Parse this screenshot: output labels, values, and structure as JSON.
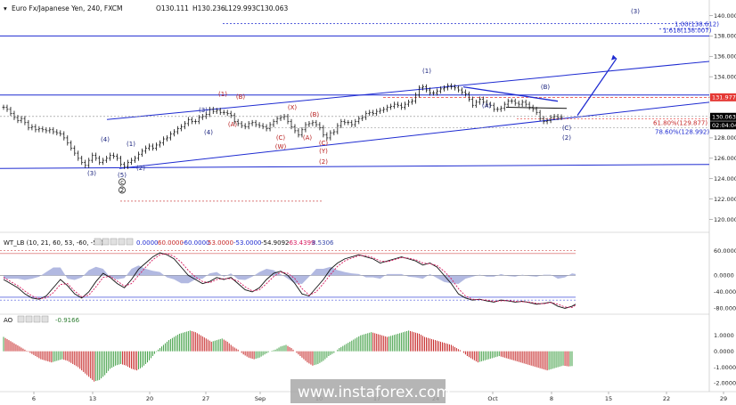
{
  "header": {
    "symbol": "Euro Fx/Japanese Yen, 240, FXCM",
    "open": "O130.111",
    "high": "H130.236",
    "low": "L129.993",
    "close": "C130.063"
  },
  "watermark": "www.instaforex.com",
  "price_axis": {
    "ticks": [
      "140.000",
      "138.000",
      "136.000",
      "134.000",
      "132.000",
      "130.000",
      "128.000",
      "126.000",
      "124.000",
      "122.000",
      "120.000"
    ],
    "current_price": "130.063",
    "countdown": "02:04:04",
    "resistance_label": "131.977"
  },
  "fib_labels": {
    "f1": "61.80%(129.877)",
    "f2": "78.60%(128.992)",
    "f3": "1.00(138.612)",
    "f4": "1.618(138.007)"
  },
  "wave_labels": [
    {
      "t": "(3)",
      "c": "#1a237e"
    },
    {
      "t": "(4)",
      "c": "#1a237e"
    },
    {
      "t": "(5)",
      "c": "#1a237e"
    },
    {
      "t": "(1)",
      "c": "#1a237e"
    },
    {
      "t": "(2)",
      "c": "#1a237e"
    },
    {
      "t": "(3)",
      "c": "#1a237e"
    },
    {
      "t": "(4)",
      "c": "#1a237e"
    },
    {
      "t": "(1)",
      "c": "#b71c1c"
    },
    {
      "t": "(B)",
      "c": "#b71c1c"
    },
    {
      "t": "(A)",
      "c": "#b71c1c"
    },
    {
      "t": "(C)",
      "c": "#b71c1c"
    },
    {
      "t": "(W)",
      "c": "#b71c1c"
    },
    {
      "t": "(X)",
      "c": "#b71c1c"
    },
    {
      "t": "(A)",
      "c": "#b71c1c"
    },
    {
      "t": "(B)",
      "c": "#b71c1c"
    },
    {
      "t": "(C)",
      "c": "#b71c1c"
    },
    {
      "t": "(Y)",
      "c": "#b71c1c"
    },
    {
      "t": "(2)",
      "c": "#b71c1c"
    },
    {
      "t": "(1)",
      "c": "#1a237e"
    },
    {
      "t": "(A)",
      "c": "#1a237e"
    },
    {
      "t": "(B)",
      "c": "#1a237e"
    },
    {
      "t": "(C)",
      "c": "#1a237e"
    },
    {
      "t": "(2)",
      "c": "#1a237e"
    },
    {
      "t": "(3)",
      "c": "#1a237e"
    },
    {
      "t": "c",
      "c": "#111111"
    },
    {
      "t": "2",
      "c": "#111111"
    }
  ],
  "wt_panel": {
    "title": "WT_LB (10, 21, 60, 53, -60, -53)",
    "values": [
      "0.0000",
      "60.0000",
      "-60.0000",
      "53.0000",
      "-53.0000",
      "-54.9092",
      "-63.4399",
      "8.5306"
    ],
    "ticks": [
      "60.0000",
      "0.0000",
      "-40.0000",
      "-80.0000"
    ]
  },
  "ao_panel": {
    "title": "AO",
    "value": "-0.9166",
    "ticks": [
      "1.0000",
      "0.0000",
      "-1.0000",
      "-2.0000"
    ]
  },
  "time_axis": [
    "6",
    "13",
    "20",
    "27",
    "Sep",
    "10",
    "17",
    "24",
    "Oct",
    "8",
    "15",
    "22",
    "29"
  ],
  "colors": {
    "price": "#111111",
    "trendline": "#1e2bd1",
    "red_label": "#b71c1c",
    "blue_label": "#1a237e",
    "wt_line": "#111111",
    "wt_signal": "#d81b60",
    "wt_hist": "#9fa8da",
    "ao_up": "#43a047",
    "ao_down": "#c62828",
    "resistance": "#e53935"
  },
  "chart_data": {
    "type": "line",
    "main": {
      "x": [
        0,
        4,
        8,
        12,
        16,
        20,
        24,
        28,
        32,
        36,
        40,
        44,
        48,
        52,
        56,
        60,
        64,
        68,
        72,
        76,
        80,
        84,
        88,
        92,
        96,
        100,
        104,
        108,
        112,
        116,
        120,
        124,
        128,
        132,
        136,
        140,
        144,
        148,
        152,
        156,
        160,
        164,
        168,
        172,
        176,
        180,
        184,
        188,
        192,
        196,
        200,
        204,
        208,
        212,
        216,
        220,
        224,
        228,
        232,
        236,
        240,
        244,
        248,
        252,
        256,
        260,
        264,
        268,
        272,
        276,
        280,
        284,
        288,
        292,
        296,
        300,
        304,
        308,
        312,
        316,
        320,
        324,
        328,
        332,
        336,
        340,
        344,
        348,
        352,
        356,
        360,
        364,
        368,
        372,
        376,
        380,
        384,
        388,
        392,
        396,
        400,
        404,
        408,
        412,
        416,
        420,
        424,
        428,
        432,
        436,
        440,
        444,
        448,
        452,
        456,
        460,
        464,
        468,
        472,
        476,
        480,
        484,
        488,
        492,
        496,
        500,
        504,
        508,
        512,
        516,
        520,
        524,
        528,
        532,
        536,
        540,
        544,
        548,
        552,
        556,
        560,
        564,
        568,
        572,
        576,
        580,
        584,
        588,
        592,
        596,
        600,
        604,
        608,
        612,
        616,
        620,
        624,
        628,
        632,
        636,
        640,
        644
      ],
      "price": [
        131.0,
        130.8,
        130.4,
        130.0,
        129.7,
        129.9,
        129.5,
        129.0,
        129.1,
        128.8,
        128.9,
        128.8,
        128.7,
        128.8,
        128.6,
        128.5,
        128.4,
        128.0,
        127.5,
        127.0,
        126.5,
        126.0,
        125.6,
        125.3,
        125.8,
        126.3,
        126.0,
        125.6,
        125.8,
        126.0,
        126.3,
        126.2,
        126.0,
        125.4,
        125.2,
        125.6,
        125.8,
        126.0,
        126.4,
        126.7,
        127.0,
        127.2,
        127.0,
        127.3,
        127.5,
        127.9,
        128.0,
        128.4,
        128.6,
        128.9,
        129.1,
        129.4,
        129.8,
        129.6,
        129.6,
        130.0,
        130.1,
        130.3,
        130.8,
        130.6,
        130.7,
        130.5,
        130.5,
        130.4,
        130.2,
        129.6,
        129.4,
        129.2,
        129.1,
        129.4,
        129.5,
        129.3,
        129.2,
        129.1,
        128.9,
        129.3,
        129.6,
        129.9,
        130.0,
        130.1,
        129.6,
        129.1,
        128.7,
        128.3,
        128.8,
        129.3,
        129.4,
        129.5,
        129.3,
        129.0,
        128.3,
        128.0,
        128.5,
        128.6,
        129.2,
        129.6,
        129.5,
        129.5,
        129.3,
        129.6,
        129.9,
        130.0,
        130.4,
        130.5,
        130.4,
        130.6,
        130.7,
        130.8,
        131.0,
        131.1,
        131.3,
        131.2,
        131.0,
        131.3,
        131.5,
        131.6,
        132.2,
        132.9,
        133.0,
        132.7,
        132.4,
        132.4,
        132.6,
        132.8,
        132.9,
        133.1,
        133.0,
        132.9,
        132.7,
        132.5,
        132.3,
        131.8,
        131.2,
        131.5,
        131.8,
        131.5,
        131.3,
        131.2,
        130.8,
        130.8,
        130.9,
        131.3,
        131.6,
        131.6,
        131.4,
        131.3,
        131.5,
        131.3,
        131.0,
        130.8,
        130.5,
        129.9,
        129.6,
        129.7,
        130.0,
        130.1,
        130.0,
        130.06
      ],
      "ylim": [
        119,
        141
      ]
    },
    "fib_levels": {
      "61.8%": 129.877,
      "78.6%": 128.992,
      "1.00": 138.612,
      "1.618": 138.007
    },
    "resistance": 131.977,
    "current": 130.063,
    "wt": {
      "ylim": [
        -90,
        70
      ],
      "x": [
        0,
        8,
        16,
        24,
        32,
        40,
        48,
        56,
        64,
        72,
        80,
        88,
        96,
        104,
        112,
        120,
        128,
        136,
        144,
        152,
        160,
        168,
        176,
        184,
        192,
        200,
        208,
        216,
        224,
        232,
        240,
        248,
        256,
        264,
        272,
        280,
        288,
        296,
        304,
        312,
        320,
        328,
        336,
        344,
        352,
        360,
        368,
        376,
        384,
        392,
        400,
        408,
        416,
        424,
        432,
        440,
        448,
        456,
        464,
        472,
        480,
        488,
        496,
        504,
        512,
        520,
        528,
        536,
        544,
        552,
        560,
        568,
        576,
        584,
        592,
        600,
        608,
        616,
        624,
        632,
        640,
        644
      ],
      "line": [
        -10,
        -20,
        -30,
        -45,
        -55,
        -58,
        -50,
        -30,
        -10,
        -25,
        -45,
        -55,
        -40,
        -15,
        5,
        -5,
        -20,
        -30,
        -10,
        15,
        30,
        45,
        55,
        50,
        40,
        20,
        0,
        -10,
        -20,
        -15,
        -5,
        -10,
        -5,
        -20,
        -35,
        -40,
        -30,
        -10,
        5,
        10,
        0,
        -20,
        -45,
        -50,
        -30,
        -10,
        15,
        30,
        40,
        45,
        50,
        45,
        40,
        30,
        35,
        40,
        45,
        40,
        35,
        25,
        30,
        20,
        0,
        -20,
        -45,
        -55,
        -60,
        -58,
        -62,
        -65,
        -60,
        -62,
        -65,
        -63,
        -66,
        -70,
        -68,
        -65,
        -75,
        -80,
        -75,
        -70
      ],
      "signal": [
        -5,
        -15,
        -25,
        -38,
        -50,
        -56,
        -55,
        -42,
        -22,
        -20,
        -38,
        -52,
        -48,
        -28,
        -5,
        -2,
        -14,
        -26,
        -20,
        0,
        20,
        38,
        50,
        53,
        46,
        32,
        12,
        -4,
        -15,
        -18,
        -10,
        -8,
        -8,
        -14,
        -28,
        -38,
        -35,
        -20,
        -3,
        8,
        5,
        -8,
        -32,
        -48,
        -40,
        -20,
        2,
        22,
        35,
        42,
        48,
        48,
        43,
        35,
        33,
        38,
        43,
        42,
        38,
        30,
        28,
        24,
        10,
        -8,
        -32,
        -50,
        -58,
        -59,
        -60,
        -63,
        -62,
        -61,
        -63,
        -64,
        -65,
        -68,
        -69,
        -66,
        -70,
        -77,
        -78,
        -72
      ]
    },
    "ao": {
      "ylim": [
        -2.2,
        1.6
      ],
      "x": [
        0,
        6,
        12,
        18,
        24,
        30,
        36,
        42,
        48,
        54,
        60,
        66,
        72,
        78,
        84,
        90,
        96,
        102,
        108,
        114,
        120,
        126,
        132,
        138,
        144,
        150,
        156,
        162,
        168,
        174,
        180,
        186,
        192,
        198,
        204,
        210,
        216,
        222,
        228,
        234,
        240,
        246,
        252,
        258,
        264,
        270,
        276,
        282,
        288,
        294,
        300,
        306,
        312,
        318,
        324,
        330,
        336,
        342,
        348,
        354,
        360,
        366,
        372,
        378,
        384,
        390,
        396,
        402,
        408,
        414,
        420,
        426,
        432,
        438,
        444,
        450,
        456,
        462,
        468,
        474,
        480,
        486,
        492,
        498,
        504,
        510,
        516,
        522,
        528,
        534,
        540,
        546,
        552,
        558,
        564,
        570,
        576,
        582,
        588,
        594,
        600,
        606,
        612,
        618,
        624,
        630,
        636,
        642
      ],
      "values": [
        0.9,
        0.7,
        0.5,
        0.3,
        0.1,
        -0.1,
        -0.3,
        -0.5,
        -0.6,
        -0.7,
        -0.6,
        -0.5,
        -0.6,
        -0.8,
        -1.0,
        -1.3,
        -1.6,
        -1.9,
        -1.8,
        -1.5,
        -1.1,
        -0.9,
        -0.8,
        -0.9,
        -1.1,
        -1.2,
        -1.0,
        -0.7,
        -0.3,
        0.1,
        0.4,
        0.7,
        0.9,
        1.1,
        1.2,
        1.3,
        1.2,
        1.0,
        0.8,
        0.6,
        0.7,
        0.8,
        0.6,
        0.3,
        0.1,
        -0.2,
        -0.4,
        -0.5,
        -0.4,
        -0.2,
        0.0,
        0.1,
        0.3,
        0.4,
        0.2,
        -0.1,
        -0.4,
        -0.7,
        -0.9,
        -0.8,
        -0.6,
        -0.3,
        -0.1,
        0.2,
        0.4,
        0.6,
        0.8,
        1.0,
        1.1,
        1.2,
        1.1,
        1.0,
        0.9,
        1.0,
        1.1,
        1.2,
        1.3,
        1.2,
        1.1,
        0.9,
        0.8,
        0.7,
        0.6,
        0.5,
        0.4,
        0.2,
        0.0,
        -0.3,
        -0.5,
        -0.7,
        -0.6,
        -0.5,
        -0.4,
        -0.3,
        -0.4,
        -0.5,
        -0.6,
        -0.7,
        -0.8,
        -0.9,
        -1.0,
        -1.1,
        -1.2,
        -1.1,
        -1.0,
        -0.9,
        -0.95,
        -0.92
      ]
    }
  }
}
